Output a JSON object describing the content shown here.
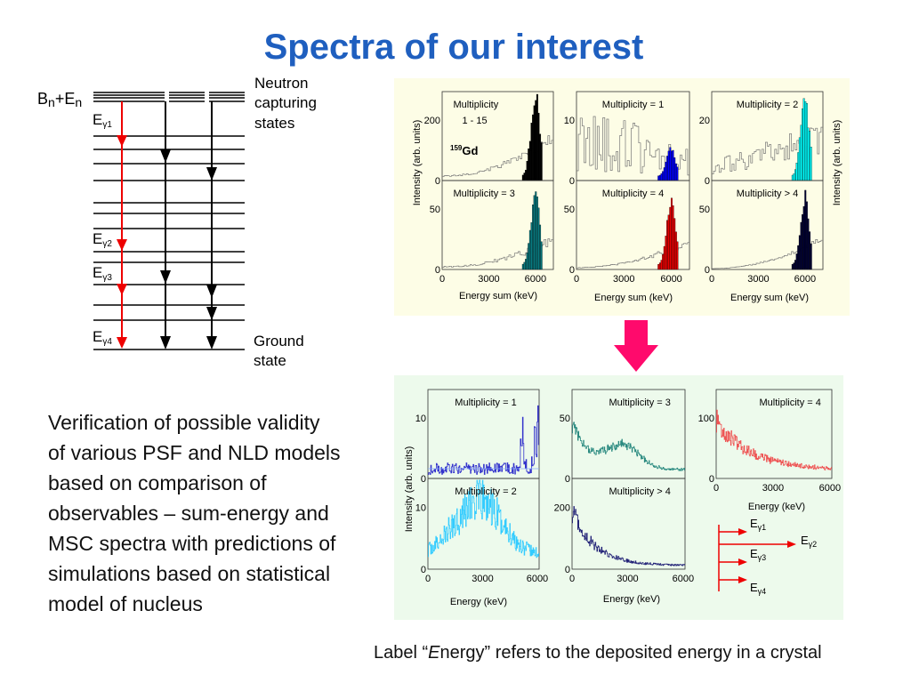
{
  "title": "Spectra of our interest",
  "level_scheme": {
    "top_label": [
      "B",
      "n",
      "+E",
      "n"
    ],
    "gamma_labels": [
      [
        "E",
        "γ1"
      ],
      [
        "E",
        "γ2"
      ],
      [
        "E",
        "γ3"
      ],
      [
        "E",
        "γ4"
      ]
    ],
    "capturing_label": [
      "Neutron",
      "capturing",
      "states"
    ],
    "ground_label": [
      "Ground",
      "state"
    ]
  },
  "top_figure": {
    "y_labels": [
      "Intensity (arb. units)",
      "Intensity (arb. units)"
    ],
    "x_labels": [
      "Energy sum (keV)",
      "Energy sum (keV)",
      "Energy sum (keV)"
    ],
    "isotope": {
      "mass": "159",
      "symbol": "Gd"
    },
    "panels": [
      {
        "label": [
          "Multiplicity",
          "1 - 15"
        ],
        "yticks": [
          200,
          0
        ]
      },
      {
        "label": [
          "Multiplicity = 1"
        ],
        "yticks": [
          10,
          0
        ]
      },
      {
        "label": [
          "Multiplicity = 2"
        ],
        "yticks": [
          20,
          0
        ]
      },
      {
        "label": [
          "Multiplicity = 3"
        ],
        "yticks": [
          50,
          0
        ],
        "xticks": [
          0,
          3000,
          6000
        ]
      },
      {
        "label": [
          "Multiplicity = 4"
        ],
        "yticks": [
          50,
          0
        ],
        "xticks": [
          0,
          3000,
          6000
        ]
      },
      {
        "label": [
          "Multiplicity > 4"
        ],
        "yticks": [
          50,
          0
        ],
        "xticks": [
          0,
          3000,
          6000
        ]
      }
    ]
  },
  "bottom_figure": {
    "y_label": "Intensity (arb. units)",
    "x_labels": [
      "Energy (keV)",
      "Energy (keV)",
      "Energy (keV)"
    ],
    "panels": [
      {
        "label": [
          "Multiplicity = 1"
        ],
        "yticks": [
          10,
          0
        ]
      },
      {
        "label": [
          "Multiplicity = 2"
        ],
        "yticks": [
          10,
          0
        ],
        "xticks": [
          0,
          3000,
          6000
        ]
      },
      {
        "label": [
          "Multiplicity = 3"
        ],
        "yticks": [
          50,
          0
        ]
      },
      {
        "label": [
          "Multiplicity > 4"
        ],
        "yticks": [
          200,
          0
        ],
        "xticks": [
          0,
          3000,
          6000
        ]
      },
      {
        "label": [
          "Multiplicity = 4"
        ],
        "yticks": [
          100,
          0
        ],
        "xticks": [
          0,
          3000,
          6000
        ]
      }
    ],
    "gamma_labels": [
      [
        "E",
        "γ1"
      ],
      [
        "E",
        "γ2"
      ],
      [
        "E",
        "γ3"
      ],
      [
        "E",
        "γ4"
      ]
    ]
  },
  "paragraph": [
    "Verification of possible validity",
    "of various PSF and NLD models",
    "based on comparison of",
    "observables – sum-energy and",
    "MSC spectra with predictions of",
    "simulations based on statistical",
    "model of nucleus"
  ],
  "footnote": [
    "Label “",
    "E",
    "nergy” refers to the deposited energy in a crystal"
  ]
}
